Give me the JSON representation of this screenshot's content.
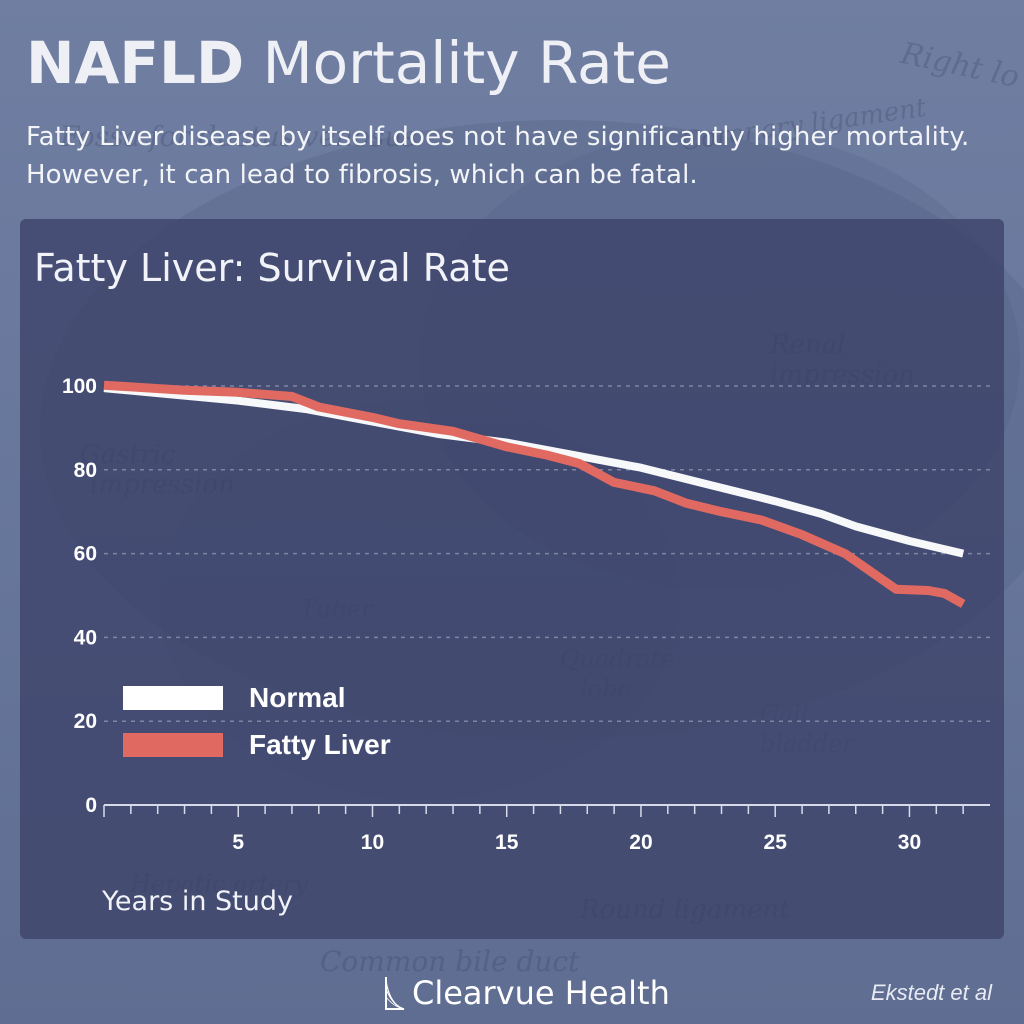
{
  "header": {
    "title_bold": "NAFLD",
    "title_rest": "Mortality Rate",
    "subtitle": "Fatty Liver disease by itself does not have significantly higher mortality. However, it can lead to fibrosis, which can be fatal."
  },
  "chart_data": {
    "type": "line",
    "title": "Fatty Liver: Survival Rate",
    "xlabel": "Years in Study",
    "ylabel": "",
    "xlim": [
      0,
      33
    ],
    "ylim": [
      0,
      100
    ],
    "x_ticks": [
      5,
      10,
      15,
      20,
      25,
      30
    ],
    "y_ticks": [
      0,
      20,
      40,
      60,
      80,
      100
    ],
    "grid": "horizontal dashed",
    "legend_position": "bottom-left",
    "series": [
      {
        "name": "Normal",
        "color": "#ffffff",
        "points": [
          [
            0,
            99.5
          ],
          [
            2.5,
            98
          ],
          [
            5,
            96.5
          ],
          [
            7.5,
            94.5
          ],
          [
            10,
            91.5
          ],
          [
            12.5,
            88.5
          ],
          [
            15,
            86.5
          ],
          [
            17.5,
            83.5
          ],
          [
            20,
            80.5
          ],
          [
            22.5,
            76.5
          ],
          [
            25,
            72.5
          ],
          [
            26.7,
            69.5
          ],
          [
            28,
            66.5
          ],
          [
            30,
            63
          ],
          [
            32,
            60
          ]
        ]
      },
      {
        "name": "Fatty Liver",
        "color": "#e06a62",
        "points": [
          [
            0,
            100.2
          ],
          [
            3,
            99
          ],
          [
            5,
            98.5
          ],
          [
            7,
            97.5
          ],
          [
            8,
            95
          ],
          [
            10,
            92.5
          ],
          [
            11,
            91
          ],
          [
            13,
            89.2
          ],
          [
            15,
            85.5
          ],
          [
            16.5,
            83.5
          ],
          [
            17.7,
            81.5
          ],
          [
            19,
            77
          ],
          [
            20.5,
            75
          ],
          [
            21.7,
            72
          ],
          [
            23,
            70
          ],
          [
            24.5,
            68
          ],
          [
            26,
            64.5
          ],
          [
            27.6,
            60
          ],
          [
            28.5,
            56
          ],
          [
            29.5,
            51.5
          ],
          [
            30.7,
            51.2
          ],
          [
            31.3,
            50.5
          ],
          [
            32,
            48
          ]
        ]
      }
    ]
  },
  "footer": {
    "brand": "Clearvue Health",
    "source": "Ekstedt et al"
  },
  "colors": {
    "background": "#6a799d",
    "panel": "#3c4268",
    "normal_line": "#ffffff",
    "fatty_liver_line": "#e06a62"
  }
}
